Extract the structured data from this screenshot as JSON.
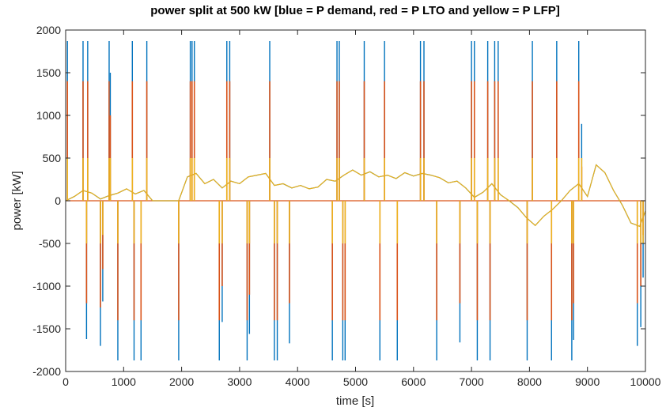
{
  "chart_data": {
    "type": "line",
    "title": "power split at 500 kW [blue = P demand, red = P LTO and yellow = P LFP]",
    "xlabel": "time [s]",
    "ylabel": "power [kW]",
    "xlim": [
      0,
      10000
    ],
    "ylim": [
      -2000,
      2000
    ],
    "xticks": [
      0,
      1000,
      2000,
      3000,
      4000,
      5000,
      6000,
      7000,
      8000,
      9000,
      10000
    ],
    "yticks": [
      -2000,
      -1500,
      -1000,
      -500,
      0,
      500,
      1000,
      1500,
      2000
    ],
    "grid": false,
    "legend": "none",
    "colors": {
      "demand": "#0072BD",
      "lto": "#D95319",
      "lfp": "#EDB120",
      "smooth": "#3c7a4a"
    },
    "baseline": {
      "x": [
        0,
        150,
        300,
        450,
        600,
        750,
        900,
        1050,
        1200,
        1350,
        1500,
        1650,
        1800,
        1950,
        2100,
        2250,
        2400,
        2550,
        2700,
        2850,
        3000,
        3150,
        3300,
        3450,
        3600,
        3750,
        3900,
        4050,
        4200,
        4350,
        4500,
        4650,
        4800,
        4950,
        5100,
        5250,
        5400,
        5550,
        5700,
        5850,
        6000,
        6150,
        6300,
        6450,
        6600,
        6750,
        6900,
        7050,
        7200,
        7350,
        7500,
        7650,
        7800,
        7950,
        8100,
        8250,
        8400,
        8550,
        8700,
        8850,
        9000,
        9150,
        9300,
        9450,
        9600,
        9750,
        9900,
        10000
      ],
      "y": [
        0,
        50,
        120,
        90,
        20,
        60,
        90,
        140,
        80,
        120,
        0,
        0,
        0,
        0,
        280,
        320,
        200,
        250,
        150,
        230,
        200,
        280,
        300,
        320,
        180,
        200,
        150,
        180,
        140,
        160,
        250,
        230,
        300,
        360,
        300,
        340,
        280,
        300,
        260,
        330,
        290,
        320,
        300,
        270,
        210,
        230,
        150,
        40,
        100,
        200,
        70,
        0,
        -80,
        -200,
        -290,
        -180,
        -100,
        0,
        120,
        200,
        50,
        420,
        330,
        120,
        -50,
        -260,
        -300,
        -120
      ]
    },
    "spikes": [
      {
        "x": 30,
        "demand": 1870,
        "lto": 1400,
        "lfp": 500
      },
      {
        "x": 300,
        "demand": 1870,
        "lto": 1400,
        "lfp": 500
      },
      {
        "x": 360,
        "demand": -1620,
        "lto": -1200,
        "lfp": -500
      },
      {
        "x": 380,
        "demand": 1870,
        "lto": 1400,
        "lfp": 500
      },
      {
        "x": 600,
        "demand": -1700,
        "lto": -1250,
        "lfp": -500
      },
      {
        "x": 640,
        "demand": -1180,
        "lto": -800,
        "lfp": -400
      },
      {
        "x": 750,
        "demand": 1870,
        "lto": 1400,
        "lfp": 500
      },
      {
        "x": 770,
        "demand": 1500,
        "lto": 1000,
        "lfp": 500
      },
      {
        "x": 900,
        "demand": -1870,
        "lto": -1400,
        "lfp": -500
      },
      {
        "x": 1150,
        "demand": 1870,
        "lto": 1400,
        "lfp": 500
      },
      {
        "x": 1180,
        "demand": -1870,
        "lto": -1400,
        "lfp": -500
      },
      {
        "x": 1300,
        "demand": -1870,
        "lto": -1400,
        "lfp": -500
      },
      {
        "x": 1400,
        "demand": 1870,
        "lto": 1400,
        "lfp": 500
      },
      {
        "x": 1950,
        "demand": -1870,
        "lto": -1400,
        "lfp": -500
      },
      {
        "x": 2150,
        "demand": 1870,
        "lto": 1400,
        "lfp": 500
      },
      {
        "x": 2180,
        "demand": 1870,
        "lto": 1400,
        "lfp": 500
      },
      {
        "x": 2220,
        "demand": 1870,
        "lto": 1400,
        "lfp": 500
      },
      {
        "x": 2650,
        "demand": -1870,
        "lto": -1400,
        "lfp": -500
      },
      {
        "x": 2700,
        "demand": -1420,
        "lto": -1000,
        "lfp": -500
      },
      {
        "x": 2780,
        "demand": 1870,
        "lto": 1400,
        "lfp": 500
      },
      {
        "x": 2830,
        "demand": 1870,
        "lto": 1400,
        "lfp": 500
      },
      {
        "x": 3130,
        "demand": -1870,
        "lto": -1400,
        "lfp": -500
      },
      {
        "x": 3170,
        "demand": -1560,
        "lto": -1100,
        "lfp": -500
      },
      {
        "x": 3520,
        "demand": 1870,
        "lto": 1400,
        "lfp": 500
      },
      {
        "x": 3600,
        "demand": -1870,
        "lto": -1400,
        "lfp": -500
      },
      {
        "x": 3650,
        "demand": -1870,
        "lto": -1400,
        "lfp": -500
      },
      {
        "x": 3860,
        "demand": -1670,
        "lto": -1200,
        "lfp": -500
      },
      {
        "x": 4600,
        "demand": -1870,
        "lto": -1400,
        "lfp": -500
      },
      {
        "x": 4680,
        "demand": 1870,
        "lto": 1400,
        "lfp": 500
      },
      {
        "x": 4720,
        "demand": 1870,
        "lto": 1400,
        "lfp": 500
      },
      {
        "x": 4780,
        "demand": -1870,
        "lto": -1400,
        "lfp": -500
      },
      {
        "x": 4820,
        "demand": -1870,
        "lto": -1400,
        "lfp": -500
      },
      {
        "x": 5150,
        "demand": 1870,
        "lto": 1400,
        "lfp": 500
      },
      {
        "x": 5420,
        "demand": -1870,
        "lto": -1400,
        "lfp": -500
      },
      {
        "x": 5500,
        "demand": 1870,
        "lto": 1400,
        "lfp": 500
      },
      {
        "x": 5720,
        "demand": -1870,
        "lto": -1400,
        "lfp": -500
      },
      {
        "x": 6120,
        "demand": 1870,
        "lto": 1400,
        "lfp": 500
      },
      {
        "x": 6180,
        "demand": 1870,
        "lto": 1400,
        "lfp": 500
      },
      {
        "x": 6400,
        "demand": -1870,
        "lto": -1400,
        "lfp": -500
      },
      {
        "x": 6800,
        "demand": -1660,
        "lto": -1200,
        "lfp": -500
      },
      {
        "x": 7000,
        "demand": 1870,
        "lto": 1400,
        "lfp": 500
      },
      {
        "x": 7050,
        "demand": 1870,
        "lto": 1400,
        "lfp": 500
      },
      {
        "x": 7100,
        "demand": -1870,
        "lto": -1400,
        "lfp": -500
      },
      {
        "x": 7280,
        "demand": 1870,
        "lto": 1400,
        "lfp": 500
      },
      {
        "x": 7320,
        "demand": -1870,
        "lto": -1400,
        "lfp": -500
      },
      {
        "x": 7400,
        "demand": 1870,
        "lto": 1400,
        "lfp": 500
      },
      {
        "x": 7460,
        "demand": 1870,
        "lto": 1400,
        "lfp": 500
      },
      {
        "x": 7960,
        "demand": -1870,
        "lto": -1400,
        "lfp": -500
      },
      {
        "x": 8050,
        "demand": 1870,
        "lto": 1400,
        "lfp": 500
      },
      {
        "x": 8380,
        "demand": -1870,
        "lto": -1400,
        "lfp": -500
      },
      {
        "x": 8470,
        "demand": 1870,
        "lto": 1400,
        "lfp": 500
      },
      {
        "x": 8730,
        "demand": -1870,
        "lto": -1400,
        "lfp": -500
      },
      {
        "x": 8760,
        "demand": -1630,
        "lto": -1200,
        "lfp": -500
      },
      {
        "x": 8850,
        "demand": 1870,
        "lto": 1400,
        "lfp": 500
      },
      {
        "x": 8900,
        "demand": 900,
        "lto": 400,
        "lfp": 500
      },
      {
        "x": 9860,
        "demand": -1700,
        "lto": -1200,
        "lfp": -500
      },
      {
        "x": 9920,
        "demand": -1480,
        "lto": -1000,
        "lfp": -500
      },
      {
        "x": 9960,
        "demand": -900,
        "lto": -400,
        "lfp": -500
      }
    ]
  }
}
